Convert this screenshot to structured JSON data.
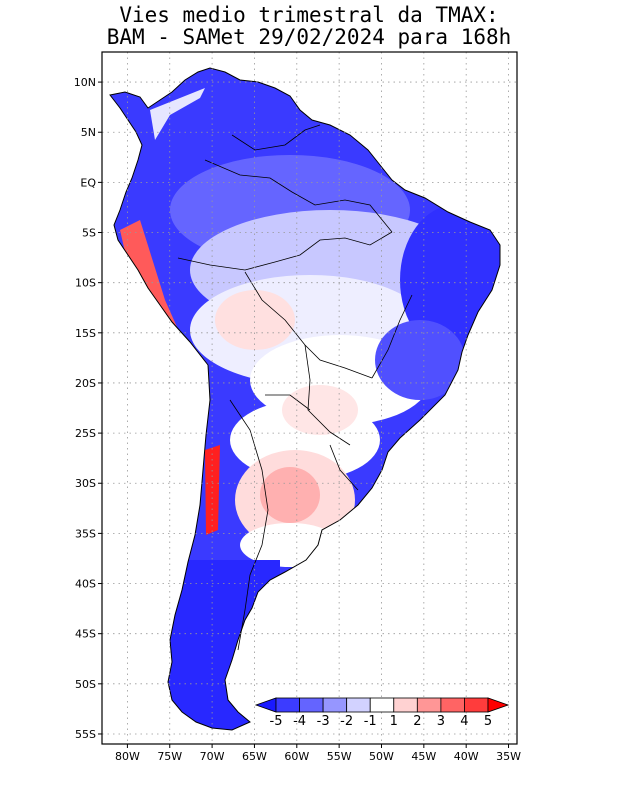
{
  "title": {
    "line1": "Vies medio trimestral da TMAX:",
    "line2": "BAM - SAMet 29/02/2024  para 168h"
  },
  "axes": {
    "lon_labels": [
      "80W",
      "75W",
      "70W",
      "65W",
      "60W",
      "55W",
      "50W",
      "45W",
      "40W",
      "35W"
    ],
    "lon_values": [
      -80,
      -75,
      -70,
      -65,
      -60,
      -55,
      -50,
      -45,
      -40,
      -35
    ],
    "lat_labels": [
      "10N",
      "5N",
      "EQ",
      "5S",
      "10S",
      "15S",
      "20S",
      "25S",
      "30S",
      "35S",
      "40S",
      "45S",
      "50S",
      "55S"
    ],
    "lat_values": [
      10,
      5,
      0,
      -5,
      -10,
      -15,
      -20,
      -25,
      -30,
      -35,
      -40,
      -45,
      -50,
      -55
    ],
    "lon_range": [
      -83,
      -34
    ],
    "lat_range": [
      -56,
      13
    ],
    "grid": "dotted"
  },
  "colorbar": {
    "labels": [
      "-5",
      "-4",
      "-3",
      "-2",
      "-1",
      "1",
      "2",
      "3",
      "4",
      "5"
    ],
    "bins": [
      {
        "color": "#1a1aff"
      },
      {
        "color": "#3c3cff"
      },
      {
        "color": "#6464ff"
      },
      {
        "color": "#9696ff"
      },
      {
        "color": "#d2d2ff"
      },
      {
        "color": "#ffffff"
      },
      {
        "color": "#ffd2d2"
      },
      {
        "color": "#ff9696"
      },
      {
        "color": "#ff6464"
      },
      {
        "color": "#ff3c3c"
      },
      {
        "color": "#ff0000"
      }
    ],
    "placement": "bottom-right"
  },
  "colors": {
    "land_base": "#3a3aff",
    "ocean": "#ffffff"
  }
}
